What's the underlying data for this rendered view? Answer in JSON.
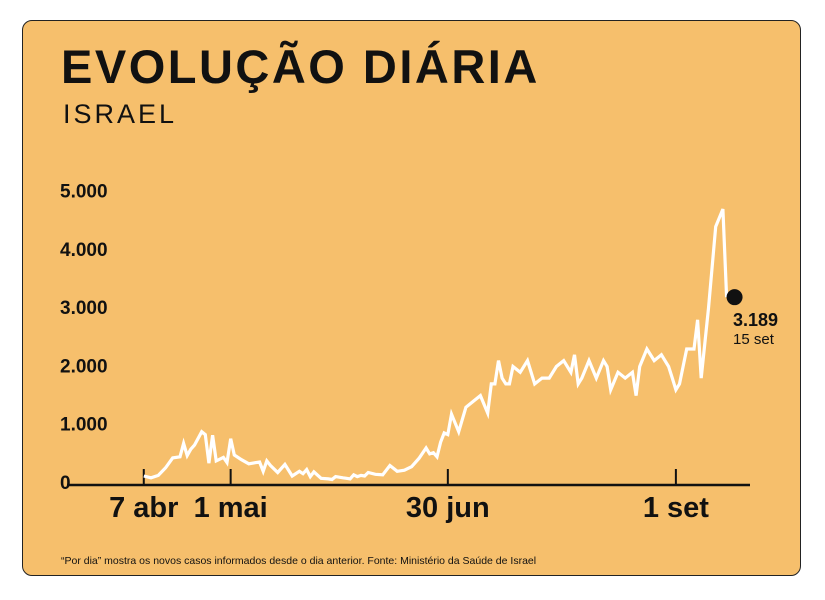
{
  "title": "EVOLUÇÃO DIÁRIA",
  "subtitle": "ISRAEL",
  "footnote": "“Por dia” mostra os novos casos informados desde o dia anterior.   Fonte: Ministério da Saúde de Israel",
  "colors": {
    "background": "#f6bf6c",
    "line": "#ffffff",
    "text": "#111111"
  },
  "chart_data": {
    "type": "line",
    "x_tick_labels": [
      "7 abr",
      "1 mai",
      "30 jun",
      "1 set"
    ],
    "y_tick_labels": [
      "0",
      "1.000",
      "2.000",
      "3.000",
      "4.000",
      "5.000"
    ],
    "y_ticks": [
      0,
      1000,
      2000,
      3000,
      4000,
      5000
    ],
    "ylim": [
      0,
      5200
    ],
    "x_start": "2020-04-07",
    "xlim": [
      "2020-03-19",
      "2020-09-27"
    ],
    "grid": false,
    "series": [
      {
        "name": "",
        "x": [
          "2020-04-07",
          "2020-04-09",
          "2020-04-11",
          "2020-04-13",
          "2020-04-15",
          "2020-04-17",
          "2020-04-18",
          "2020-04-19",
          "2020-04-20",
          "2020-04-21",
          "2020-04-23",
          "2020-04-24",
          "2020-04-25",
          "2020-04-26",
          "2020-04-27",
          "2020-04-29",
          "2020-04-30",
          "2020-05-01",
          "2020-05-02",
          "2020-05-04",
          "2020-05-06",
          "2020-05-08",
          "2020-05-09",
          "2020-05-10",
          "2020-05-11",
          "2020-05-12",
          "2020-05-14",
          "2020-05-16",
          "2020-05-18",
          "2020-05-20",
          "2020-05-21",
          "2020-05-22",
          "2020-05-23",
          "2020-05-24",
          "2020-05-26",
          "2020-05-28",
          "2020-05-29",
          "2020-05-30",
          "2020-05-31",
          "2020-06-01",
          "2020-06-02",
          "2020-06-03",
          "2020-06-04",
          "2020-06-05",
          "2020-06-06",
          "2020-06-07",
          "2020-06-08",
          "2020-06-10",
          "2020-06-12",
          "2020-06-14",
          "2020-06-16",
          "2020-06-18",
          "2020-06-20",
          "2020-06-22",
          "2020-06-24",
          "2020-06-25",
          "2020-06-26",
          "2020-06-27",
          "2020-06-28",
          "2020-06-29",
          "2020-06-30",
          "2020-07-01",
          "2020-07-03",
          "2020-07-05",
          "2020-07-07",
          "2020-07-09",
          "2020-07-11",
          "2020-07-12",
          "2020-07-13",
          "2020-07-14",
          "2020-07-15",
          "2020-07-16",
          "2020-07-17",
          "2020-07-18",
          "2020-07-20",
          "2020-07-22",
          "2020-07-24",
          "2020-07-26",
          "2020-07-28",
          "2020-07-30",
          "2020-08-01",
          "2020-08-03",
          "2020-08-04",
          "2020-08-05",
          "2020-08-06",
          "2020-08-08",
          "2020-08-10",
          "2020-08-12",
          "2020-08-13",
          "2020-08-14",
          "2020-08-16",
          "2020-08-18",
          "2020-08-20",
          "2020-08-21",
          "2020-08-22",
          "2020-08-24",
          "2020-08-26",
          "2020-08-28",
          "2020-08-30",
          "2020-08-31",
          "2020-09-01",
          "2020-09-02",
          "2020-09-04",
          "2020-09-06",
          "2020-09-07",
          "2020-09-08",
          "2020-09-10",
          "2020-09-12",
          "2020-09-14",
          "2020-09-15"
        ],
        "values": [
          120,
          90,
          130,
          260,
          430,
          450,
          680,
          470,
          580,
          650,
          880,
          830,
          340,
          820,
          380,
          440,
          350,
          760,
          480,
          400,
          330,
          350,
          360,
          200,
          380,
          300,
          180,
          320,
          120,
          200,
          160,
          230,
          110,
          190,
          80,
          70,
          60,
          110,
          100,
          90,
          80,
          70,
          140,
          110,
          130,
          120,
          180,
          150,
          140,
          300,
          200,
          220,
          280,
          420,
          600,
          500,
          520,
          450,
          700,
          860,
          830,
          1180,
          880,
          1300,
          1400,
          1500,
          1200,
          1700,
          1700,
          2100,
          1800,
          1700,
          1700,
          2000,
          1900,
          2100,
          1700,
          1800,
          1800,
          2000,
          2100,
          1900,
          2200,
          1700,
          1800,
          2100,
          1800,
          2100,
          2000,
          1600,
          1900,
          1800,
          1900,
          1500,
          2000,
          2300,
          2100,
          2200,
          2000,
          1800,
          1600,
          1700,
          2300,
          2300,
          2800,
          1800,
          3000,
          4400,
          4700,
          3189
        ]
      }
    ],
    "highlight": {
      "date": "2020-09-15",
      "value": 3189,
      "label": "3.189",
      "date_label": "15 set"
    }
  }
}
